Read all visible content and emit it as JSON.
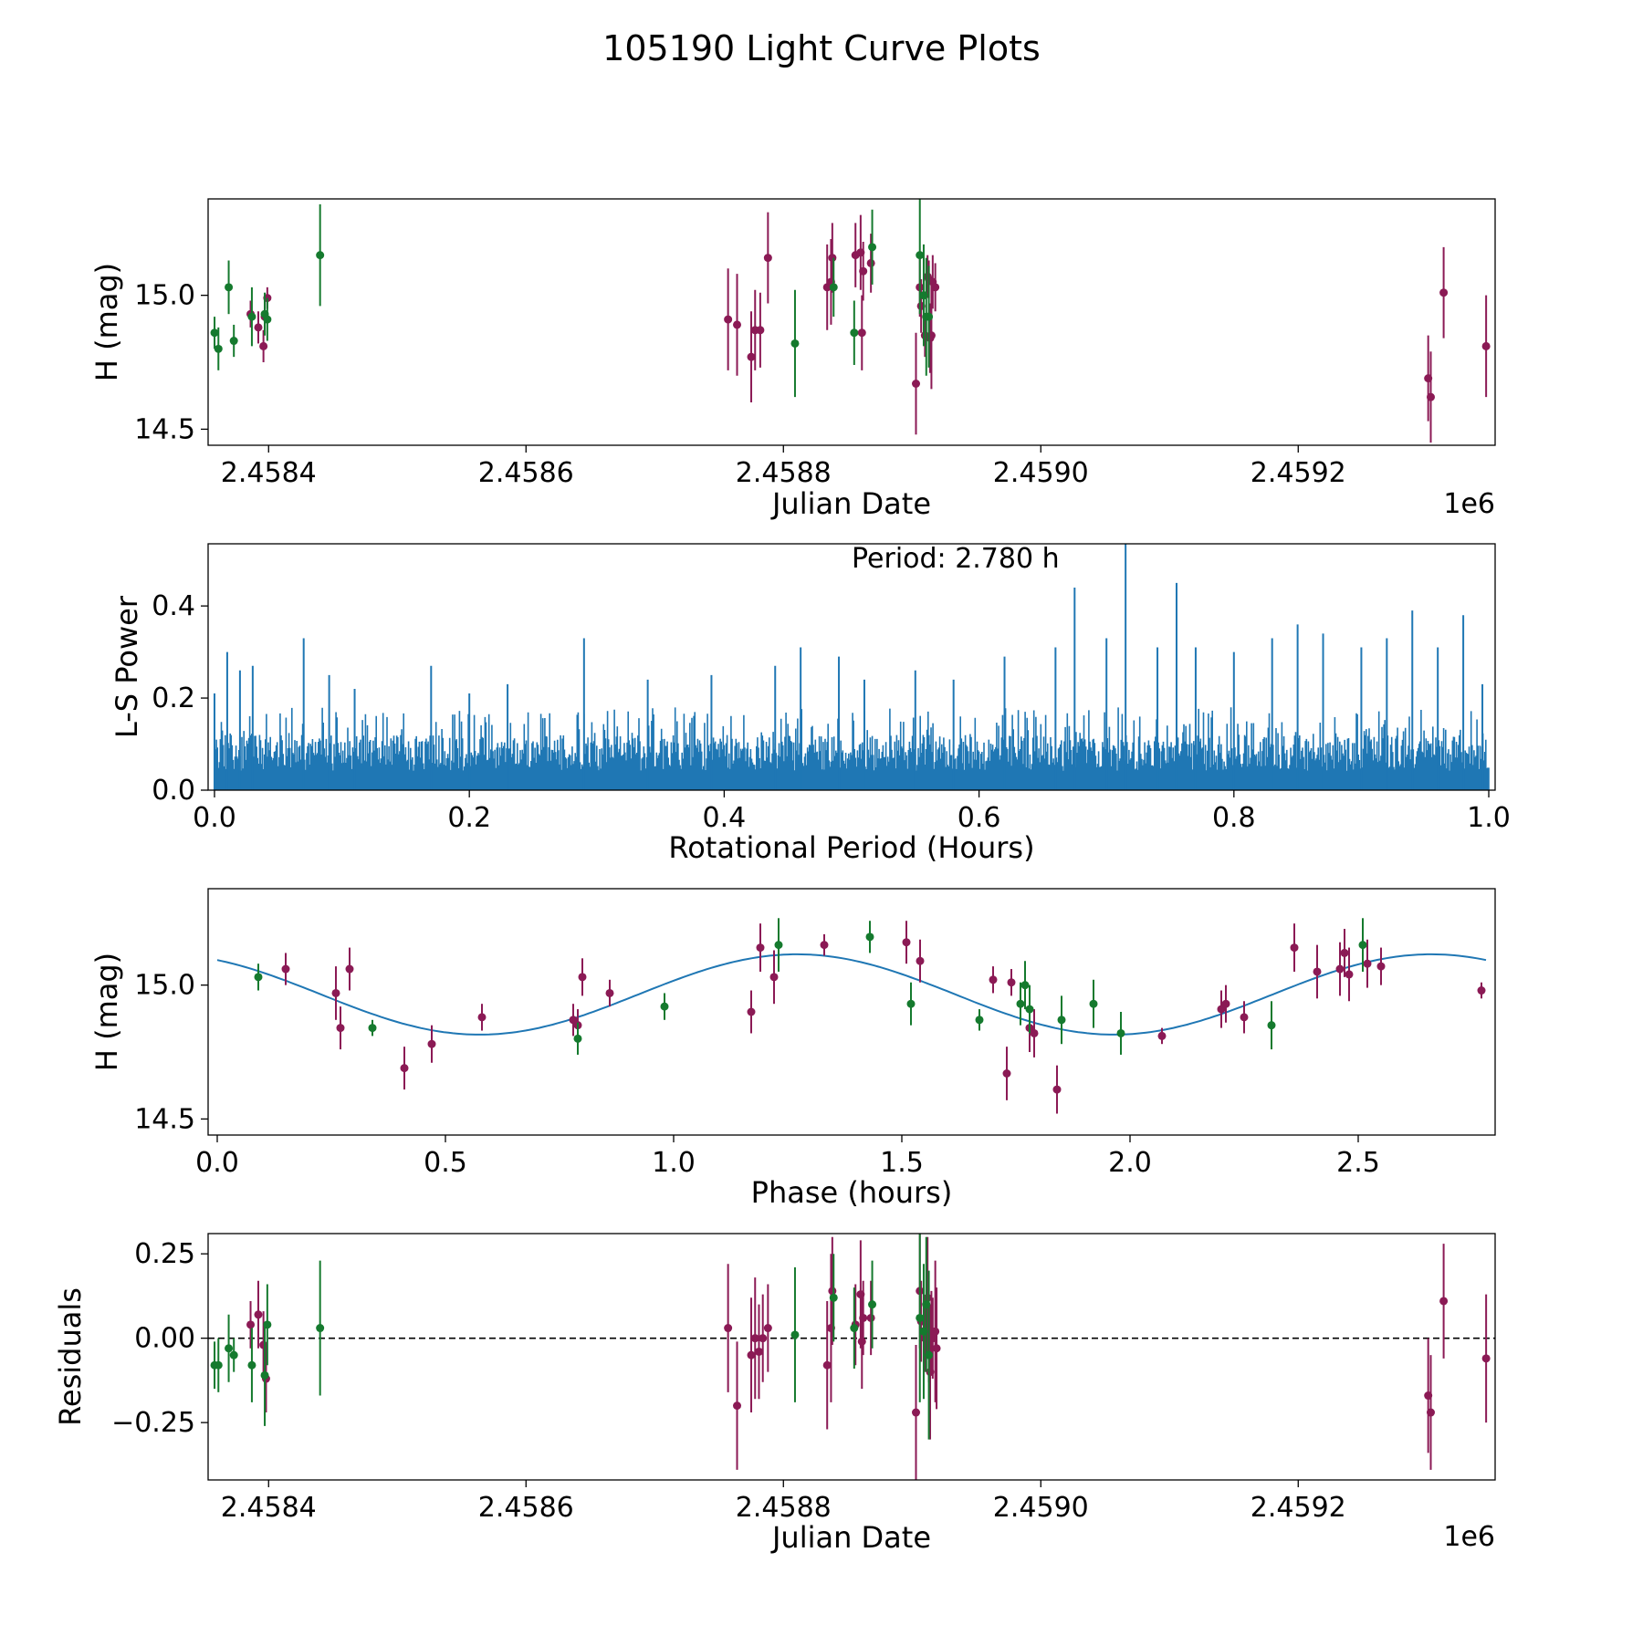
{
  "figure": {
    "title": "105190 Light Curve Plots"
  },
  "colors": {
    "filter_a": "#8b1a55",
    "filter_b": "#157a2e",
    "fit": "#1f77b4",
    "periodogram": "#1f77b4"
  },
  "chart_data": [
    {
      "type": "scatter",
      "panel": "light-curve",
      "xlabel": "Julian Date",
      "ylabel": "H (mag)",
      "x_offset_label": "1e6",
      "xlim": [
        2458353,
        2459353
      ],
      "ylim": [
        14.44,
        15.36
      ],
      "y_inverted": true,
      "x_ticks": [
        2458400,
        2458600,
        2458800,
        2459000,
        2459200
      ],
      "x_tick_labels": [
        "2.4584",
        "2.4586",
        "2.4588",
        "2.4590",
        "2.4592"
      ],
      "y_ticks": [
        15.0,
        14.5
      ],
      "y_tick_labels": [
        "15.0",
        "14.5"
      ],
      "series": [
        {
          "name": "filter-a",
          "color": "#8b1a55",
          "points": [
            [
              2458386,
              14.93,
              0.05
            ],
            [
              2458392,
              14.88,
              0.06
            ],
            [
              2458396,
              14.81,
              0.06
            ],
            [
              2458397,
              14.92,
              0.07
            ],
            [
              2458399,
              14.99,
              0.04
            ],
            [
              2458757,
              14.91,
              0.19
            ],
            [
              2458764,
              14.89,
              0.19
            ],
            [
              2458775,
              14.77,
              0.17
            ],
            [
              2458778,
              14.87,
              0.15
            ],
            [
              2458782,
              14.87,
              0.14
            ],
            [
              2458788,
              15.14,
              0.17
            ],
            [
              2458834,
              15.03,
              0.16
            ],
            [
              2458837,
              15.05,
              0.16
            ],
            [
              2458838,
              15.14,
              0.13
            ],
            [
              2458856,
              15.15,
              0.12
            ],
            [
              2458860,
              15.16,
              0.14
            ],
            [
              2458861,
              14.86,
              0.14
            ],
            [
              2458862,
              15.09,
              0.11
            ],
            [
              2458868,
              15.12,
              0.11
            ],
            [
              2458903,
              14.67,
              0.19
            ],
            [
              2458906,
              15.03,
              0.11
            ],
            [
              2458907,
              14.96,
              0.1
            ],
            [
              2458910,
              14.85,
              0.08
            ],
            [
              2458912,
              15.07,
              0.08
            ],
            [
              2458913,
              15.06,
              0.07
            ],
            [
              2458914,
              14.84,
              0.13
            ],
            [
              2458915,
              14.85,
              0.2
            ],
            [
              2458916,
              15.05,
              0.1
            ],
            [
              2458918,
              15.03,
              0.09
            ],
            [
              2459301,
              14.69,
              0.16
            ],
            [
              2459303,
              14.62,
              0.17
            ],
            [
              2459313,
              15.01,
              0.17
            ],
            [
              2459346,
              14.81,
              0.19
            ]
          ]
        },
        {
          "name": "filter-b",
          "color": "#157a2e",
          "points": [
            [
              2458358,
              14.86,
              0.06
            ],
            [
              2458361,
              14.8,
              0.08
            ],
            [
              2458369,
              15.03,
              0.1
            ],
            [
              2458373,
              14.83,
              0.06
            ],
            [
              2458387,
              14.92,
              0.11
            ],
            [
              2458397,
              14.93,
              0.08
            ],
            [
              2458399,
              14.91,
              0.08
            ],
            [
              2458440,
              15.15,
              0.19
            ],
            [
              2458809,
              14.82,
              0.2
            ],
            [
              2458839,
              15.03,
              0.11
            ],
            [
              2458855,
              14.86,
              0.12
            ],
            [
              2458869,
              15.18,
              0.14
            ],
            [
              2458906,
              15.15,
              0.22
            ],
            [
              2458909,
              15.0,
              0.19
            ],
            [
              2458911,
              14.92,
              0.22
            ],
            [
              2458913,
              14.92,
              0.19
            ]
          ]
        }
      ]
    },
    {
      "type": "line",
      "panel": "periodogram",
      "xlabel": "Rotational Period (Hours)",
      "ylabel": "L-S Power",
      "xlim": [
        -0.005,
        1.005
      ],
      "ylim": [
        0.0,
        0.535
      ],
      "x_ticks": [
        0.0,
        0.2,
        0.4,
        0.6,
        0.8,
        1.0
      ],
      "x_tick_labels": [
        "0.0",
        "0.2",
        "0.4",
        "0.6",
        "0.8",
        "1.0"
      ],
      "y_ticks": [
        0.0,
        0.2,
        0.4
      ],
      "y_tick_labels": [
        "0.0",
        "0.2",
        "0.4"
      ],
      "annotation": "Period: 2.780 h",
      "baseline_max_power": 0.12,
      "peaks": [
        [
          0.0,
          0.21
        ],
        [
          0.01,
          0.3
        ],
        [
          0.02,
          0.26
        ],
        [
          0.03,
          0.27
        ],
        [
          0.07,
          0.33
        ],
        [
          0.09,
          0.25
        ],
        [
          0.11,
          0.22
        ],
        [
          0.17,
          0.27
        ],
        [
          0.2,
          0.21
        ],
        [
          0.23,
          0.23
        ],
        [
          0.29,
          0.33
        ],
        [
          0.34,
          0.24
        ],
        [
          0.39,
          0.25
        ],
        [
          0.44,
          0.27
        ],
        [
          0.46,
          0.31
        ],
        [
          0.49,
          0.29
        ],
        [
          0.51,
          0.24
        ],
        [
          0.55,
          0.26
        ],
        [
          0.58,
          0.24
        ],
        [
          0.62,
          0.29
        ],
        [
          0.66,
          0.31
        ],
        [
          0.675,
          0.44
        ],
        [
          0.7,
          0.33
        ],
        [
          0.715,
          0.55
        ],
        [
          0.74,
          0.31
        ],
        [
          0.755,
          0.45
        ],
        [
          0.77,
          0.31
        ],
        [
          0.8,
          0.3
        ],
        [
          0.83,
          0.33
        ],
        [
          0.85,
          0.36
        ],
        [
          0.87,
          0.34
        ],
        [
          0.9,
          0.31
        ],
        [
          0.92,
          0.33
        ],
        [
          0.94,
          0.39
        ],
        [
          0.96,
          0.31
        ],
        [
          0.98,
          0.38
        ],
        [
          0.995,
          0.23
        ]
      ]
    },
    {
      "type": "scatter",
      "panel": "phased",
      "xlabel": "Phase (hours)",
      "ylabel": "H (mag)",
      "xlim": [
        -0.02,
        2.8
      ],
      "ylim": [
        14.44,
        15.36
      ],
      "y_inverted": true,
      "x_ticks": [
        0.0,
        0.5,
        1.0,
        1.5,
        2.0,
        2.5
      ],
      "x_tick_labels": [
        "0.0",
        "0.5",
        "1.0",
        "1.5",
        "2.0",
        "2.5"
      ],
      "y_ticks": [
        15.0,
        14.5
      ],
      "y_tick_labels": [
        "15.0",
        "14.5"
      ],
      "fit": {
        "period": 1.39,
        "mean": 14.965,
        "amplitude": 0.15,
        "phase_of_max": 1.27,
        "x_range": [
          0.0,
          2.78
        ]
      },
      "series": [
        {
          "name": "filter-a",
          "color": "#8b1a55",
          "points": [
            [
              0.15,
              15.06,
              0.06
            ],
            [
              0.26,
              14.97,
              0.1
            ],
            [
              0.27,
              14.84,
              0.08
            ],
            [
              0.29,
              15.06,
              0.08
            ],
            [
              0.41,
              14.69,
              0.08
            ],
            [
              0.47,
              14.78,
              0.07
            ],
            [
              0.58,
              14.88,
              0.05
            ],
            [
              0.78,
              14.87,
              0.06
            ],
            [
              0.79,
              14.85,
              0.06
            ],
            [
              0.8,
              15.03,
              0.07
            ],
            [
              0.86,
              14.97,
              0.05
            ],
            [
              1.17,
              14.9,
              0.08
            ],
            [
              1.19,
              15.14,
              0.09
            ],
            [
              1.22,
              15.03,
              0.1
            ],
            [
              1.33,
              15.15,
              0.04
            ],
            [
              1.51,
              15.16,
              0.08
            ],
            [
              1.54,
              15.09,
              0.08
            ],
            [
              1.7,
              15.02,
              0.05
            ],
            [
              1.73,
              14.67,
              0.1
            ],
            [
              1.74,
              15.01,
              0.05
            ],
            [
              1.78,
              14.84,
              0.09
            ],
            [
              1.79,
              14.82,
              0.09
            ],
            [
              1.84,
              14.61,
              0.09
            ],
            [
              2.07,
              14.81,
              0.03
            ],
            [
              2.2,
              14.91,
              0.07
            ],
            [
              2.21,
              14.93,
              0.07
            ],
            [
              2.25,
              14.88,
              0.06
            ],
            [
              2.36,
              15.14,
              0.09
            ],
            [
              2.41,
              15.05,
              0.1
            ],
            [
              2.46,
              15.06,
              0.1
            ],
            [
              2.47,
              15.12,
              0.09
            ],
            [
              2.48,
              15.04,
              0.1
            ],
            [
              2.52,
              15.08,
              0.09
            ],
            [
              2.55,
              15.07,
              0.07
            ],
            [
              2.77,
              14.98,
              0.03
            ]
          ]
        },
        {
          "name": "filter-b",
          "color": "#157a2e",
          "points": [
            [
              0.09,
              15.03,
              0.05
            ],
            [
              0.34,
              14.84,
              0.03
            ],
            [
              0.79,
              14.8,
              0.06
            ],
            [
              0.98,
              14.92,
              0.05
            ],
            [
              1.23,
              15.15,
              0.1
            ],
            [
              1.43,
              15.18,
              0.06
            ],
            [
              1.52,
              14.93,
              0.08
            ],
            [
              1.67,
              14.87,
              0.04
            ],
            [
              1.76,
              14.93,
              0.08
            ],
            [
              1.77,
              15.0,
              0.09
            ],
            [
              1.78,
              14.91,
              0.09
            ],
            [
              1.85,
              14.87,
              0.09
            ],
            [
              1.92,
              14.93,
              0.09
            ],
            [
              1.98,
              14.82,
              0.08
            ],
            [
              2.31,
              14.85,
              0.09
            ],
            [
              2.51,
              15.15,
              0.1
            ]
          ]
        }
      ]
    },
    {
      "type": "scatter",
      "panel": "residuals",
      "xlabel": "Julian Date",
      "ylabel": "Residuals",
      "x_offset_label": "1e6",
      "xlim": [
        2458353,
        2459353
      ],
      "ylim": [
        -0.42,
        0.31
      ],
      "x_ticks": [
        2458400,
        2458600,
        2458800,
        2459000,
        2459200
      ],
      "x_tick_labels": [
        "2.4584",
        "2.4586",
        "2.4588",
        "2.4590",
        "2.4592"
      ],
      "y_ticks": [
        0.25,
        0.0,
        -0.25
      ],
      "y_tick_labels": [
        "0.25",
        "0.00",
        "−0.25"
      ],
      "reference_line": 0.0,
      "series": [
        {
          "name": "filter-a",
          "color": "#8b1a55",
          "points": [
            [
              2458386,
              0.04,
              0.07
            ],
            [
              2458392,
              0.07,
              0.1
            ],
            [
              2458396,
              -0.02,
              0.1
            ],
            [
              2458398,
              -0.12,
              0.1
            ],
            [
              2458757,
              0.03,
              0.19
            ],
            [
              2458764,
              -0.2,
              0.19
            ],
            [
              2458775,
              -0.05,
              0.17
            ],
            [
              2458778,
              0.0,
              0.18
            ],
            [
              2458781,
              -0.04,
              0.14
            ],
            [
              2458784,
              0.0,
              0.13
            ],
            [
              2458788,
              0.03,
              0.13
            ],
            [
              2458834,
              -0.08,
              0.19
            ],
            [
              2458837,
              0.03,
              0.22
            ],
            [
              2458838,
              0.14,
              0.16
            ],
            [
              2458856,
              0.04,
              0.12
            ],
            [
              2458860,
              0.13,
              0.16
            ],
            [
              2458861,
              -0.01,
              0.14
            ],
            [
              2458862,
              0.06,
              0.11
            ],
            [
              2458868,
              0.06,
              0.11
            ],
            [
              2458903,
              -0.22,
              0.2
            ],
            [
              2458906,
              0.14,
              0.17
            ],
            [
              2458907,
              0.05,
              0.12
            ],
            [
              2458910,
              0.0,
              0.1
            ],
            [
              2458912,
              0.12,
              0.18
            ],
            [
              2458913,
              -0.03,
              0.1
            ],
            [
              2458914,
              -0.1,
              0.2
            ],
            [
              2458915,
              0.02,
              0.12
            ],
            [
              2458916,
              0.0,
              0.12
            ],
            [
              2458918,
              0.02,
              0.21
            ],
            [
              2458919,
              -0.03,
              0.18
            ],
            [
              2459301,
              -0.17,
              0.17
            ],
            [
              2459303,
              -0.22,
              0.17
            ],
            [
              2459313,
              0.11,
              0.17
            ],
            [
              2459346,
              -0.06,
              0.19
            ]
          ]
        },
        {
          "name": "filter-b",
          "color": "#157a2e",
          "points": [
            [
              2458358,
              -0.08,
              0.07
            ],
            [
              2458361,
              -0.08,
              0.08
            ],
            [
              2458369,
              -0.03,
              0.1
            ],
            [
              2458373,
              -0.05,
              0.05
            ],
            [
              2458387,
              -0.08,
              0.11
            ],
            [
              2458397,
              -0.11,
              0.15
            ],
            [
              2458399,
              0.04,
              0.12
            ],
            [
              2458440,
              0.03,
              0.2
            ],
            [
              2458809,
              0.01,
              0.2
            ],
            [
              2458839,
              0.12,
              0.13
            ],
            [
              2458855,
              0.03,
              0.12
            ],
            [
              2458869,
              0.1,
              0.13
            ],
            [
              2458906,
              0.06,
              0.25
            ],
            [
              2458909,
              0.02,
              0.2
            ],
            [
              2458911,
              0.1,
              0.2
            ],
            [
              2458913,
              -0.05,
              0.25
            ]
          ]
        }
      ]
    }
  ]
}
